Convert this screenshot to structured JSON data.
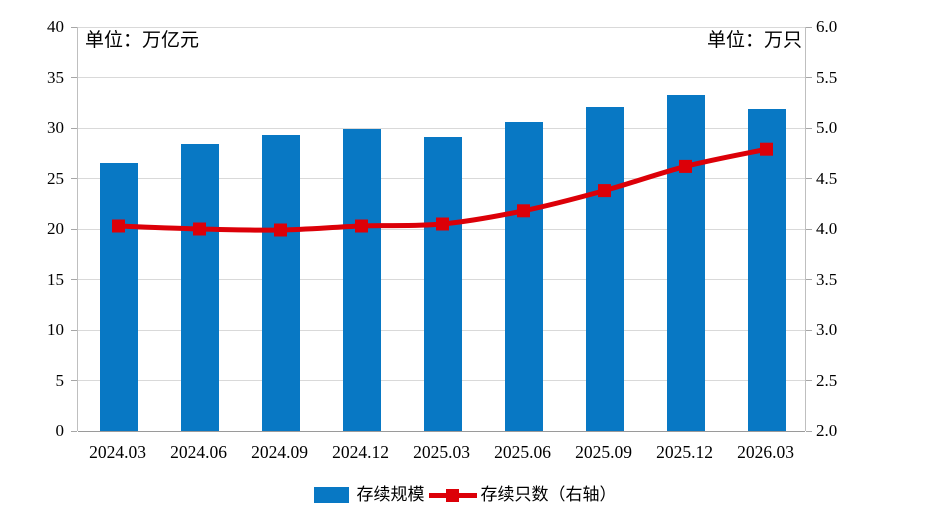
{
  "chart_data": {
    "type": "bar",
    "combo": "bar+line",
    "background": "#FFFFFF",
    "grid": true,
    "legend_position": "bottom",
    "categories": [
      "2024.03",
      "2024.06",
      "2024.09",
      "2024.12",
      "2025.03",
      "2025.06",
      "2025.09",
      "2025.12",
      "2026.03"
    ],
    "series": [
      {
        "name": "存续规模",
        "type": "bar",
        "axis": "left",
        "color": "#0878C4",
        "values": [
          26.5,
          28.4,
          29.3,
          29.9,
          29.1,
          30.6,
          32.1,
          33.3,
          31.9
        ]
      },
      {
        "name": "存续只数（右轴）",
        "type": "line",
        "axis": "right",
        "color": "#DC0008",
        "marker": "square",
        "values": [
          4.03,
          4.0,
          3.99,
          4.03,
          4.05,
          4.18,
          4.38,
          4.62,
          4.79
        ]
      }
    ],
    "left_axis": {
      "unit_label": "单位：万亿元",
      "min": 0,
      "max": 40,
      "step": 5,
      "ticks": [
        "0",
        "5",
        "10",
        "15",
        "20",
        "25",
        "30",
        "35",
        "40"
      ]
    },
    "right_axis": {
      "unit_label": "单位：万只",
      "min": 2.0,
      "max": 6.0,
      "step": 0.5,
      "ticks": [
        "2.0",
        "2.5",
        "3.0",
        "3.5",
        "4.0",
        "4.5",
        "5.0",
        "5.5",
        "6.0"
      ]
    },
    "gridline_color": "#D9D9D9",
    "axis_text_color": "#000000"
  }
}
